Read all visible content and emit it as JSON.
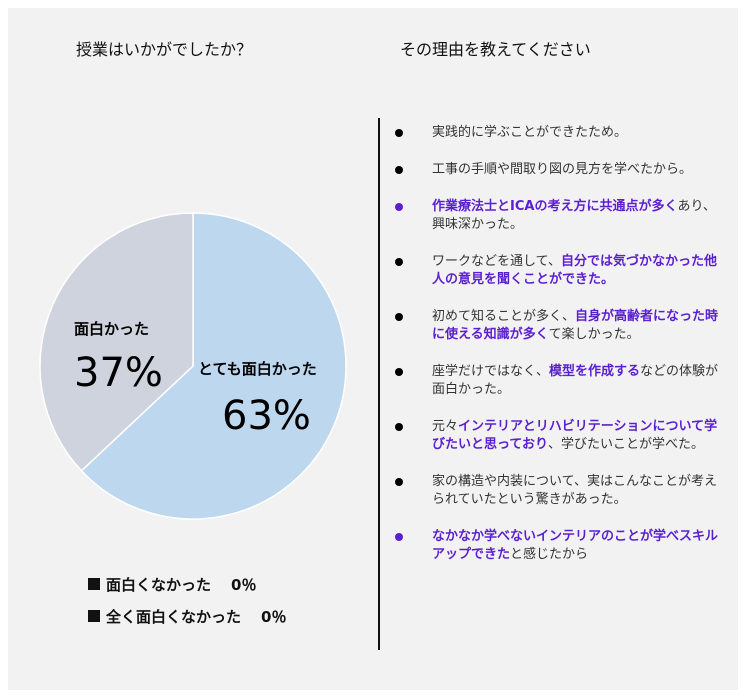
{
  "left_title": "授業はいかがでしたか？",
  "right_title": "その理由を教えてください",
  "colors": {
    "blue": "#bdd7ee",
    "gray": "#cfd3de",
    "accent": "#5b1fd0"
  },
  "chart_data": {
    "type": "pie",
    "title": "授業はいかがでしたか？",
    "slices": [
      {
        "label": "とても面白かった",
        "value": 63,
        "display": "63%",
        "color": "#bdd7ee"
      },
      {
        "label": "面白かった",
        "value": 37,
        "display": "37%",
        "color": "#cfd3de"
      }
    ],
    "zero_entries": [
      {
        "label": "面白くなかった",
        "display": "0％"
      },
      {
        "label": "全く面白くなかった",
        "display": "0％"
      }
    ]
  },
  "reasons": [
    {
      "accent": false,
      "segments": [
        {
          "t": "実践的に学ぶことができたため。",
          "b": false
        }
      ]
    },
    {
      "accent": false,
      "segments": [
        {
          "t": "工事の手順や間取り図の見方を学べたから。",
          "b": false
        }
      ]
    },
    {
      "accent": true,
      "segments": [
        {
          "t": "作業療法士とICAの考え方に共通点が多く",
          "b": true
        },
        {
          "t": "あり、興味深かった。",
          "b": false
        }
      ]
    },
    {
      "accent": false,
      "segments": [
        {
          "t": "ワークなどを通して、",
          "b": false
        },
        {
          "t": "自分では気づかなかった他人の意見を聞くことができた。",
          "b": true
        }
      ]
    },
    {
      "accent": false,
      "segments": [
        {
          "t": "初めて知ることが多く、",
          "b": false
        },
        {
          "t": "自身が高齢者になった時に使える知識が多く",
          "b": true
        },
        {
          "t": "て楽しかった。",
          "b": false
        }
      ]
    },
    {
      "accent": false,
      "segments": [
        {
          "t": "座学だけではなく、",
          "b": false
        },
        {
          "t": "模型を作成する",
          "b": true
        },
        {
          "t": "などの体験が面白かった。",
          "b": false
        }
      ]
    },
    {
      "accent": false,
      "segments": [
        {
          "t": "元々",
          "b": false
        },
        {
          "t": "インテリアとリハビリテーションについて学びたいと思っており",
          "b": true
        },
        {
          "t": "、学びたいことが学べた。",
          "b": false
        }
      ]
    },
    {
      "accent": false,
      "segments": [
        {
          "t": "家の構造や内装について、実はこんなことが考えられていたという驚きがあった。",
          "b": false
        }
      ]
    },
    {
      "accent": true,
      "segments": [
        {
          "t": "なかなか学べないインテリアのことが学べスキルアップできた",
          "b": true
        },
        {
          "t": "と感じたから",
          "b": false
        }
      ]
    }
  ]
}
